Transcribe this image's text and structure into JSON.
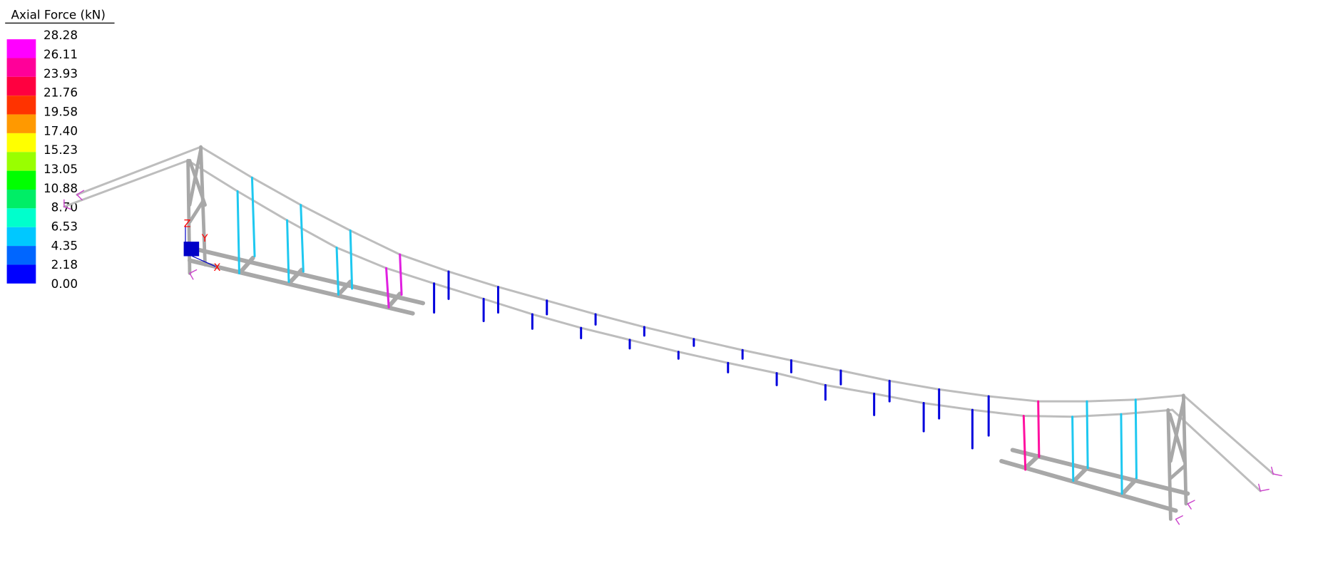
{
  "legend": {
    "title": "Axial Force  (kN)",
    "values": [
      "28.28",
      "26.11",
      "23.93",
      "21.76",
      "19.58",
      "17.40",
      "15.23",
      "13.05",
      "10.88",
      "8.70",
      "6.53",
      "4.35",
      "2.18",
      "0.00"
    ],
    "colors": [
      "#FF00FF",
      "#FF0099",
      "#FF0040",
      "#FF3300",
      "#FF9900",
      "#FFFF00",
      "#99FF00",
      "#00FF00",
      "#00EE66",
      "#00FFCC",
      "#00C8FF",
      "#0066FF",
      "#0000FF"
    ]
  },
  "axes": {
    "x": "X",
    "y": "Y",
    "z": "Z"
  },
  "colors": {
    "cable": "#BDBDBD",
    "deck": "#A8A8A8",
    "tower": "#A8A8A8",
    "support": "#CC44CC",
    "axis": "#FF0000",
    "origin_cube": "#0000C8"
  }
}
